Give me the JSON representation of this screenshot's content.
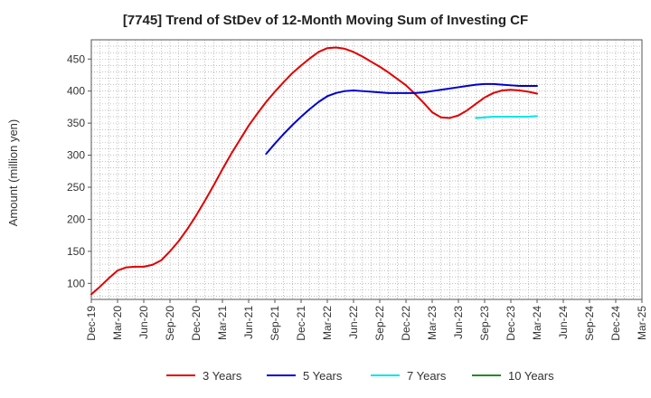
{
  "chart_data": {
    "type": "line",
    "title": "[7745]  Trend of StDev of 12-Month Moving Sum of Investing CF",
    "ylabel": "Amount (million yen)",
    "xlabel": "",
    "ylim": [
      75,
      480
    ],
    "yticks": [
      100,
      150,
      200,
      250,
      300,
      350,
      400,
      450
    ],
    "x_range": [
      "2019-12",
      "2025-03"
    ],
    "x_ticks": [
      "Dec-19",
      "Mar-20",
      "Jun-20",
      "Sep-20",
      "Dec-20",
      "Mar-21",
      "Jun-21",
      "Sep-21",
      "Dec-21",
      "Mar-22",
      "Jun-22",
      "Sep-22",
      "Dec-22",
      "Mar-23",
      "Jun-23",
      "Sep-23",
      "Dec-23",
      "Mar-24",
      "Jun-24",
      "Sep-24",
      "Dec-24",
      "Mar-25"
    ],
    "grid": true,
    "legend_position": "bottom",
    "series": [
      {
        "name": "3 Years",
        "color": "#e00000",
        "points": [
          [
            "2019-12",
            83
          ],
          [
            "2020-01",
            95
          ],
          [
            "2020-02",
            108
          ],
          [
            "2020-03",
            120
          ],
          [
            "2020-04",
            125
          ],
          [
            "2020-05",
            126
          ],
          [
            "2020-06",
            126
          ],
          [
            "2020-07",
            129
          ],
          [
            "2020-08",
            136
          ],
          [
            "2020-09",
            150
          ],
          [
            "2020-10",
            166
          ],
          [
            "2020-11",
            185
          ],
          [
            "2020-12",
            206
          ],
          [
            "2021-01",
            229
          ],
          [
            "2021-02",
            253
          ],
          [
            "2021-03",
            278
          ],
          [
            "2021-04",
            302
          ],
          [
            "2021-05",
            324
          ],
          [
            "2021-06",
            346
          ],
          [
            "2021-07",
            365
          ],
          [
            "2021-08",
            383
          ],
          [
            "2021-09",
            399
          ],
          [
            "2021-10",
            414
          ],
          [
            "2021-11",
            428
          ],
          [
            "2021-12",
            440
          ],
          [
            "2022-01",
            451
          ],
          [
            "2022-02",
            461
          ],
          [
            "2022-03",
            467
          ],
          [
            "2022-04",
            468
          ],
          [
            "2022-05",
            466
          ],
          [
            "2022-06",
            461
          ],
          [
            "2022-07",
            454
          ],
          [
            "2022-08",
            446
          ],
          [
            "2022-09",
            438
          ],
          [
            "2022-10",
            429
          ],
          [
            "2022-11",
            419
          ],
          [
            "2022-12",
            409
          ],
          [
            "2023-01",
            396
          ],
          [
            "2023-02",
            382
          ],
          [
            "2023-03",
            367
          ],
          [
            "2023-04",
            359
          ],
          [
            "2023-05",
            358
          ],
          [
            "2023-06",
            362
          ],
          [
            "2023-07",
            370
          ],
          [
            "2023-08",
            380
          ],
          [
            "2023-09",
            390
          ],
          [
            "2023-10",
            397
          ],
          [
            "2023-11",
            401
          ],
          [
            "2023-12",
            402
          ],
          [
            "2024-01",
            401
          ],
          [
            "2024-02",
            399
          ],
          [
            "2024-03",
            396
          ]
        ]
      },
      {
        "name": "5 Years",
        "color": "#0000cc",
        "points": [
          [
            "2021-08",
            302
          ],
          [
            "2021-09",
            318
          ],
          [
            "2021-10",
            333
          ],
          [
            "2021-11",
            347
          ],
          [
            "2021-12",
            360
          ],
          [
            "2022-01",
            372
          ],
          [
            "2022-02",
            383
          ],
          [
            "2022-03",
            392
          ],
          [
            "2022-04",
            397
          ],
          [
            "2022-05",
            400
          ],
          [
            "2022-06",
            401
          ],
          [
            "2022-07",
            400
          ],
          [
            "2022-08",
            399
          ],
          [
            "2022-09",
            398
          ],
          [
            "2022-10",
            397
          ],
          [
            "2022-11",
            397
          ],
          [
            "2022-12",
            397
          ],
          [
            "2023-01",
            397
          ],
          [
            "2023-02",
            398
          ],
          [
            "2023-03",
            400
          ],
          [
            "2023-04",
            402
          ],
          [
            "2023-05",
            404
          ],
          [
            "2023-06",
            406
          ],
          [
            "2023-07",
            408
          ],
          [
            "2023-08",
            410
          ],
          [
            "2023-09",
            411
          ],
          [
            "2023-10",
            411
          ],
          [
            "2023-11",
            410
          ],
          [
            "2023-12",
            409
          ],
          [
            "2024-01",
            408
          ],
          [
            "2024-02",
            408
          ],
          [
            "2024-03",
            408
          ]
        ]
      },
      {
        "name": "7 Years",
        "color": "#00e5e5",
        "points": [
          [
            "2023-08",
            358
          ],
          [
            "2023-09",
            359
          ],
          [
            "2023-10",
            360
          ],
          [
            "2023-11",
            360
          ],
          [
            "2023-12",
            360
          ],
          [
            "2024-01",
            360
          ],
          [
            "2024-02",
            360
          ],
          [
            "2024-03",
            361
          ]
        ]
      },
      {
        "name": "10 Years",
        "color": "#228b22",
        "points": []
      }
    ]
  }
}
